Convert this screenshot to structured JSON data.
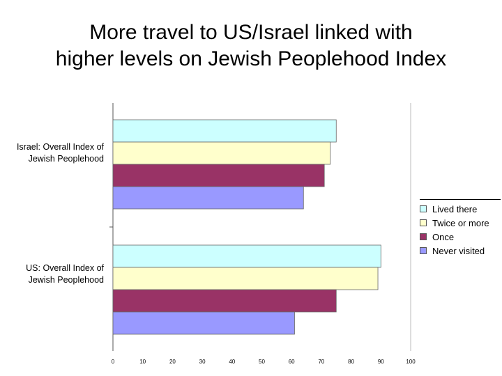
{
  "slide": {
    "title_line1": "More travel to US/Israel linked with",
    "title_line2": "higher levels on Jewish Peoplehood Index"
  },
  "chart_data": {
    "type": "bar",
    "orientation": "horizontal",
    "categories": [
      "Israel: Overall Index of Jewish Peoplehood",
      "US: Overall Index of Jewish Peoplehood"
    ],
    "series": [
      {
        "name": "Lived there",
        "color": "#CCFFFF",
        "values": [
          75,
          90
        ]
      },
      {
        "name": "Twice or more",
        "color": "#FFFFCC",
        "values": [
          73,
          89
        ]
      },
      {
        "name": "Once",
        "color": "#993366",
        "values": [
          71,
          75
        ]
      },
      {
        "name": "Never visited",
        "color": "#9999FF",
        "values": [
          64,
          61
        ]
      }
    ],
    "xlim": [
      0,
      100
    ],
    "xticks": [
      "0",
      "10",
      "20",
      "30",
      "40",
      "50",
      "60",
      "70",
      "80",
      "90",
      "100"
    ],
    "title": "",
    "xlabel": "",
    "ylabel": "",
    "grid": false,
    "legend_position": "right"
  }
}
